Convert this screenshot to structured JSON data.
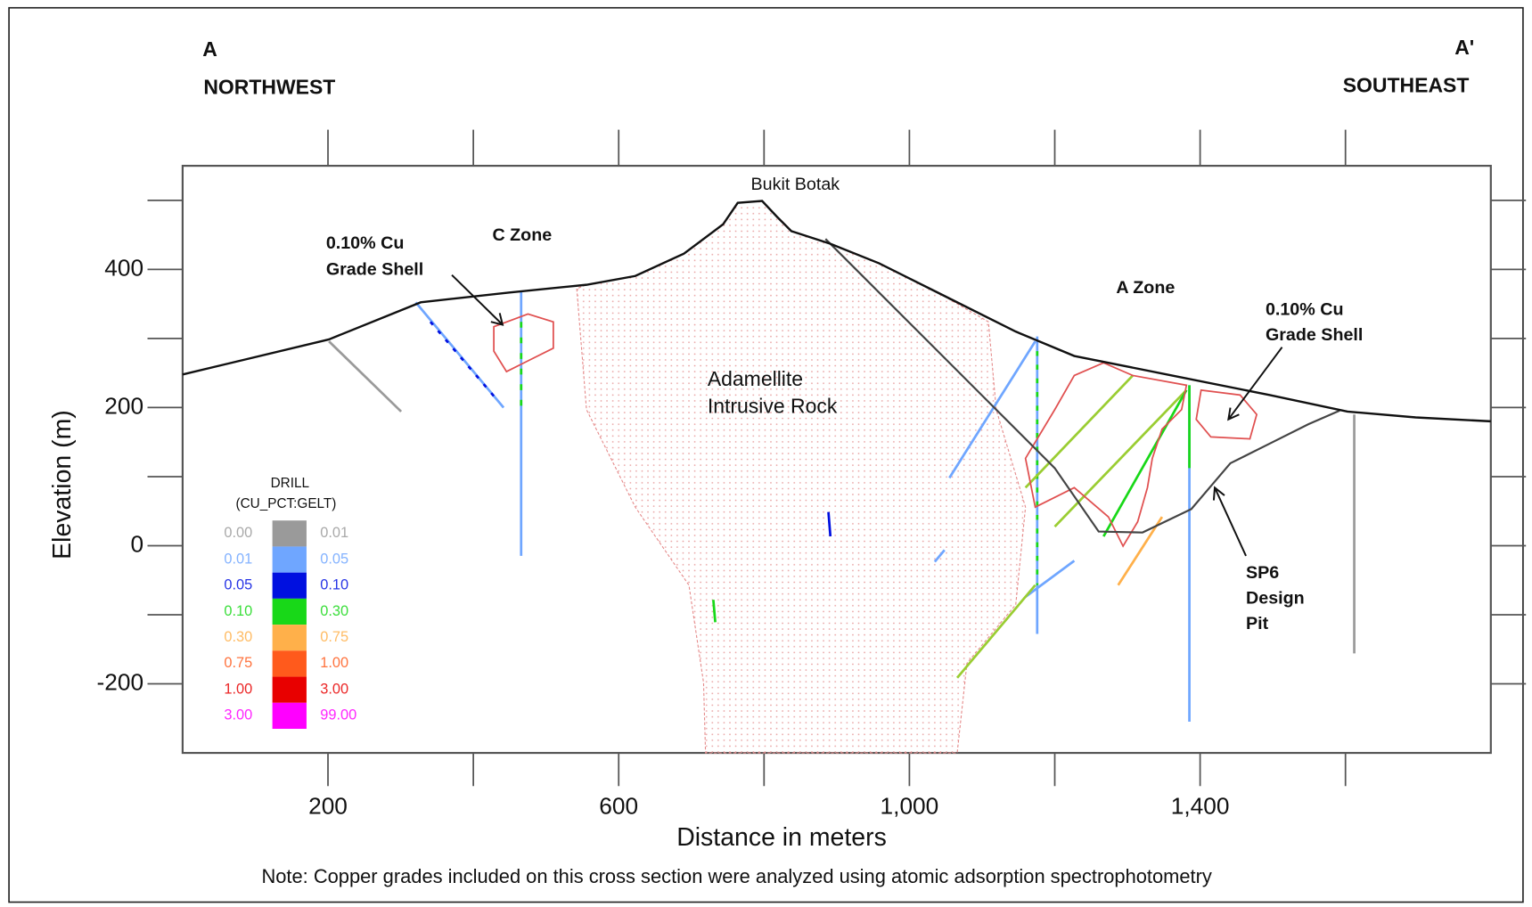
{
  "header": {
    "left": {
      "label": "A",
      "direction": "NORTHWEST"
    },
    "right": {
      "label": "A'",
      "direction": "SOUTHEAST"
    }
  },
  "axes": {
    "x_label": "Distance in meters",
    "y_label": "Elevation (m)",
    "xlim": [
      0,
      1800
    ],
    "ylim": [
      -300,
      550
    ],
    "xticks": [
      200,
      600,
      {
        "value": 1000,
        "label": "1,000"
      },
      {
        "value": 1400,
        "label": "1,400"
      }
    ],
    "xticks_minor": [
      400,
      800,
      1200,
      1600
    ],
    "yticks": [
      400,
      200,
      0,
      -200
    ],
    "yticks_minor": [
      500,
      300,
      100,
      -100
    ]
  },
  "annotations": {
    "peak": "Bukit Botak",
    "c_zone": "C Zone",
    "a_zone": "A Zone",
    "shell_left": [
      "0.10% Cu",
      "Grade Shell"
    ],
    "shell_right": [
      "0.10% Cu",
      "Grade Shell"
    ],
    "intrusive": [
      "Adamellite",
      "Intrusive Rock"
    ],
    "pit": [
      "SP6",
      "Design",
      "Pit"
    ]
  },
  "legend": {
    "title": "DRILL",
    "subtitle": "(CU_PCT:GELT)",
    "rows": [
      {
        "from": "0.00",
        "to": "0.01",
        "color": "#9a9a9a"
      },
      {
        "from": "0.01",
        "to": "0.05",
        "color": "#6fa6ff"
      },
      {
        "from": "0.05",
        "to": "0.10",
        "color": "#0010e0"
      },
      {
        "from": "0.10",
        "to": "0.30",
        "color": "#18d818"
      },
      {
        "from": "0.30",
        "to": "0.75",
        "color": "#ffb04a"
      },
      {
        "from": "0.75",
        "to": "1.00",
        "color": "#ff5a1c"
      },
      {
        "from": "1.00",
        "to": "3.00",
        "color": "#e80000"
      },
      {
        "from": "3.00",
        "to": "99.00",
        "color": "#ff00ff"
      }
    ]
  },
  "note": "Note: Copper grades included on this cross section were analyzed using atomic adsorption spectrophotometry"
}
